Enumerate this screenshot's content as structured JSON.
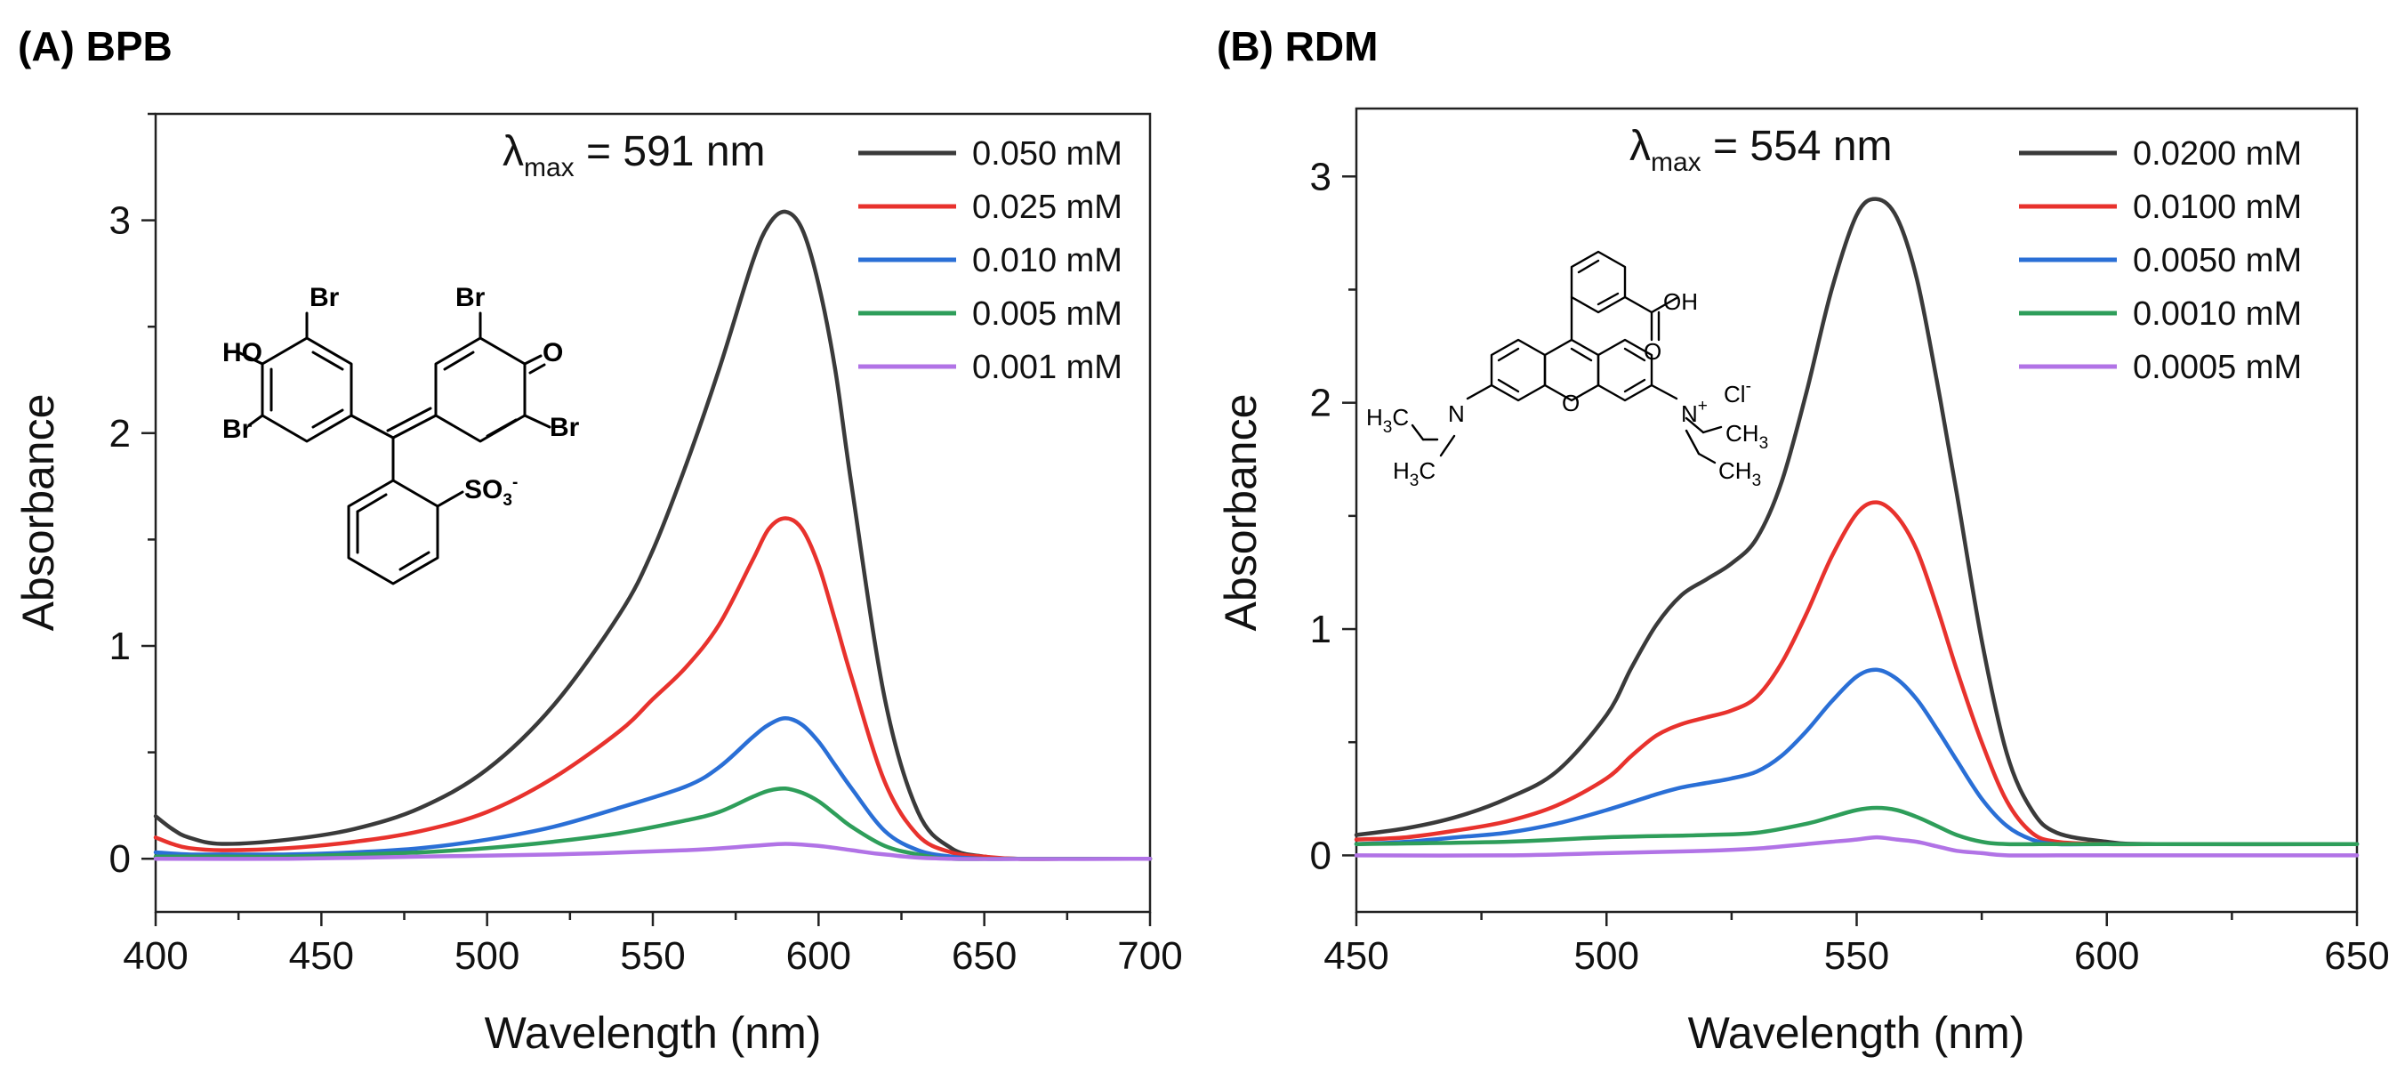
{
  "chart_data": [
    {
      "type": "line",
      "panel_label": "(A) BPB",
      "xlabel": "Wavelength (nm)",
      "ylabel": "Absorbance",
      "xlim": [
        400,
        700
      ],
      "ylim": [
        -0.25,
        3.5
      ],
      "xticks": [
        400,
        450,
        500,
        550,
        600,
        650,
        700
      ],
      "yticks": [
        0,
        1,
        2,
        3
      ],
      "annotation": {
        "prefix": "λ",
        "subscript": "max",
        "text": " = 591 nm"
      },
      "structure_label": "bromophenol blue",
      "series": [
        {
          "name": "0.050 mM",
          "color": "#3a3a3a",
          "x": [
            400,
            405,
            410,
            420,
            440,
            460,
            480,
            500,
            520,
            540,
            550,
            560,
            570,
            580,
            585,
            590,
            595,
            600,
            605,
            610,
            620,
            630,
            640,
            650,
            660,
            680,
            700
          ],
          "y": [
            0.2,
            0.14,
            0.1,
            0.07,
            0.09,
            0.14,
            0.24,
            0.42,
            0.72,
            1.15,
            1.45,
            1.85,
            2.3,
            2.8,
            2.98,
            3.04,
            2.96,
            2.7,
            2.3,
            1.75,
            0.75,
            0.22,
            0.05,
            0.01,
            0.0,
            0.0,
            0.0
          ]
        },
        {
          "name": "0.025 mM",
          "color": "#e8322d",
          "x": [
            400,
            405,
            410,
            420,
            440,
            460,
            480,
            500,
            520,
            540,
            550,
            560,
            570,
            580,
            585,
            590,
            595,
            600,
            605,
            610,
            620,
            630,
            640,
            650,
            660,
            680,
            700
          ],
          "y": [
            0.1,
            0.07,
            0.05,
            0.04,
            0.05,
            0.08,
            0.13,
            0.22,
            0.38,
            0.6,
            0.75,
            0.9,
            1.1,
            1.4,
            1.55,
            1.6,
            1.55,
            1.38,
            1.12,
            0.85,
            0.36,
            0.11,
            0.03,
            0.01,
            0.0,
            0.0,
            0.0
          ]
        },
        {
          "name": "0.010 mM",
          "color": "#2a6fd6",
          "x": [
            400,
            410,
            420,
            440,
            460,
            480,
            500,
            520,
            540,
            560,
            570,
            580,
            585,
            590,
            595,
            600,
            605,
            610,
            620,
            630,
            640,
            650,
            660,
            700
          ],
          "y": [
            0.03,
            0.02,
            0.02,
            0.02,
            0.03,
            0.05,
            0.09,
            0.15,
            0.24,
            0.34,
            0.43,
            0.57,
            0.63,
            0.66,
            0.63,
            0.55,
            0.44,
            0.33,
            0.13,
            0.04,
            0.01,
            0.0,
            0.0,
            0.0
          ]
        },
        {
          "name": "0.005 mM",
          "color": "#2e9e5a",
          "x": [
            400,
            420,
            440,
            460,
            480,
            500,
            520,
            540,
            560,
            570,
            580,
            585,
            590,
            595,
            600,
            605,
            610,
            620,
            630,
            640,
            660,
            700
          ],
          "y": [
            0.01,
            0.01,
            0.01,
            0.02,
            0.03,
            0.05,
            0.08,
            0.12,
            0.18,
            0.22,
            0.29,
            0.32,
            0.33,
            0.31,
            0.27,
            0.21,
            0.15,
            0.06,
            0.02,
            0.0,
            0.0,
            0.0
          ]
        },
        {
          "name": "0.001 mM",
          "color": "#b173e6",
          "x": [
            400,
            440,
            480,
            520,
            560,
            580,
            590,
            600,
            610,
            620,
            640,
            700
          ],
          "y": [
            0.0,
            0.0,
            0.01,
            0.02,
            0.04,
            0.06,
            0.07,
            0.06,
            0.04,
            0.02,
            0.0,
            0.0
          ]
        }
      ]
    },
    {
      "type": "line",
      "panel_label": "(B) RDM",
      "xlabel": "Wavelength (nm)",
      "ylabel": "Absorbance",
      "xlim": [
        450,
        650
      ],
      "ylim": [
        -0.25,
        3.3
      ],
      "xticks": [
        450,
        500,
        550,
        600,
        650
      ],
      "yticks": [
        0,
        1,
        2,
        3
      ],
      "annotation": {
        "prefix": "λ",
        "subscript": "max",
        "text": " = 554 nm"
      },
      "structure_label": "rhodamine B",
      "series": [
        {
          "name": "0.0200 mM",
          "color": "#3a3a3a",
          "x": [
            450,
            460,
            470,
            480,
            490,
            500,
            505,
            510,
            515,
            520,
            525,
            530,
            535,
            540,
            545,
            550,
            554,
            558,
            562,
            566,
            570,
            575,
            580,
            585,
            590,
            600,
            610,
            650
          ],
          "y": [
            0.09,
            0.12,
            0.17,
            0.25,
            0.37,
            0.62,
            0.83,
            1.02,
            1.15,
            1.22,
            1.29,
            1.4,
            1.65,
            2.05,
            2.5,
            2.83,
            2.9,
            2.82,
            2.55,
            2.1,
            1.6,
            0.95,
            0.45,
            0.2,
            0.1,
            0.06,
            0.05,
            0.05
          ]
        },
        {
          "name": "0.0100 mM",
          "color": "#e8322d",
          "x": [
            450,
            460,
            470,
            480,
            490,
            500,
            505,
            510,
            515,
            520,
            525,
            530,
            535,
            540,
            545,
            550,
            554,
            558,
            562,
            566,
            570,
            575,
            580,
            585,
            590,
            600,
            610,
            650
          ],
          "y": [
            0.07,
            0.08,
            0.11,
            0.15,
            0.22,
            0.34,
            0.44,
            0.53,
            0.58,
            0.61,
            0.64,
            0.7,
            0.85,
            1.07,
            1.32,
            1.51,
            1.56,
            1.5,
            1.35,
            1.1,
            0.82,
            0.5,
            0.24,
            0.1,
            0.06,
            0.05,
            0.05,
            0.05
          ]
        },
        {
          "name": "0.0050 mM",
          "color": "#2a6fd6",
          "x": [
            450,
            460,
            470,
            480,
            490,
            500,
            510,
            515,
            520,
            525,
            530,
            535,
            540,
            545,
            550,
            554,
            558,
            562,
            566,
            570,
            575,
            580,
            585,
            590,
            600,
            650
          ],
          "y": [
            0.05,
            0.06,
            0.08,
            0.1,
            0.14,
            0.2,
            0.27,
            0.3,
            0.32,
            0.34,
            0.37,
            0.44,
            0.55,
            0.68,
            0.79,
            0.82,
            0.78,
            0.69,
            0.56,
            0.42,
            0.25,
            0.13,
            0.07,
            0.05,
            0.05,
            0.05
          ]
        },
        {
          "name": "0.0010 mM",
          "color": "#2e9e5a",
          "x": [
            450,
            480,
            500,
            520,
            530,
            540,
            545,
            550,
            554,
            558,
            562,
            566,
            570,
            575,
            580,
            590,
            600,
            650
          ],
          "y": [
            0.05,
            0.06,
            0.08,
            0.09,
            0.1,
            0.14,
            0.17,
            0.2,
            0.21,
            0.2,
            0.17,
            0.13,
            0.09,
            0.06,
            0.05,
            0.05,
            0.05,
            0.05
          ]
        },
        {
          "name": "0.0005 mM",
          "color": "#b173e6",
          "x": [
            450,
            480,
            500,
            520,
            530,
            540,
            545,
            550,
            554,
            558,
            562,
            566,
            570,
            575,
            580,
            590,
            600,
            650
          ],
          "y": [
            0.0,
            0.0,
            0.01,
            0.02,
            0.03,
            0.05,
            0.06,
            0.07,
            0.08,
            0.07,
            0.06,
            0.04,
            0.02,
            0.01,
            0.0,
            0.0,
            0.0,
            0.0
          ]
        }
      ]
    }
  ]
}
